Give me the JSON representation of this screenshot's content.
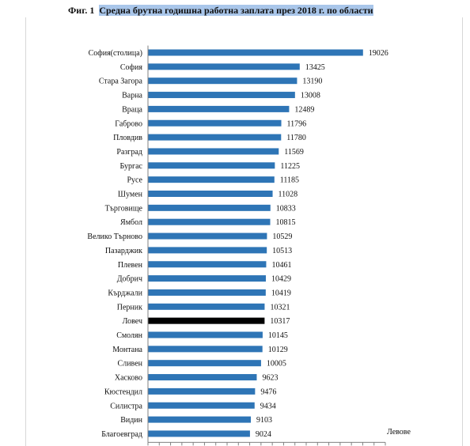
{
  "caption": {
    "fig_label": "Фиг. 1",
    "title": "Средна брутна годишна работна заплата през 2018 г. по области"
  },
  "colors": {
    "bar": "#2e75b6",
    "highlight_bar": "#000000",
    "axis": "#808080"
  },
  "chart_data": {
    "type": "bar",
    "orientation": "horizontal",
    "title": "Средна брутна годишна работна заплата през 2018 г. по области",
    "xlabel": "Левове",
    "ylabel": "",
    "xlim": [
      0,
      21000
    ],
    "grid": false,
    "legend": "none",
    "highlight_category": "Ловеч",
    "categories": [
      "София(столица)",
      "София",
      "Стара Загора",
      "Варна",
      "Враца",
      "Габрово",
      "Пловдив",
      "Разград",
      "Бургас",
      "Русе",
      "Шумен",
      "Търговище",
      "Ямбол",
      "Велико Търново",
      "Пазарджик",
      "Плевен",
      "Добрич",
      "Кърджали",
      "Перник",
      "Ловеч",
      "Смолян",
      "Монтана",
      "Сливен",
      "Хасково",
      "Кюстендил",
      "Силистра",
      "Видин",
      "Благоевград"
    ],
    "values": [
      19026,
      13425,
      13190,
      13008,
      12489,
      11796,
      11780,
      11569,
      11225,
      11185,
      11028,
      10833,
      10815,
      10529,
      10513,
      10461,
      10429,
      10419,
      10321,
      10317,
      10145,
      10129,
      10005,
      9623,
      9476,
      9434,
      9103,
      9024
    ],
    "data_labels": [
      "19026",
      "13425",
      "13190",
      "13008",
      "12489",
      "11796",
      "11780",
      "11569",
      "11225",
      "11185",
      "11028",
      "10833",
      "10815",
      "10529",
      "10513",
      "10461",
      "10429",
      "10419",
      "10321",
      "10317",
      "10145",
      "10129",
      "10005",
      "9623",
      "9476",
      "9434",
      "9103",
      "9024"
    ]
  }
}
